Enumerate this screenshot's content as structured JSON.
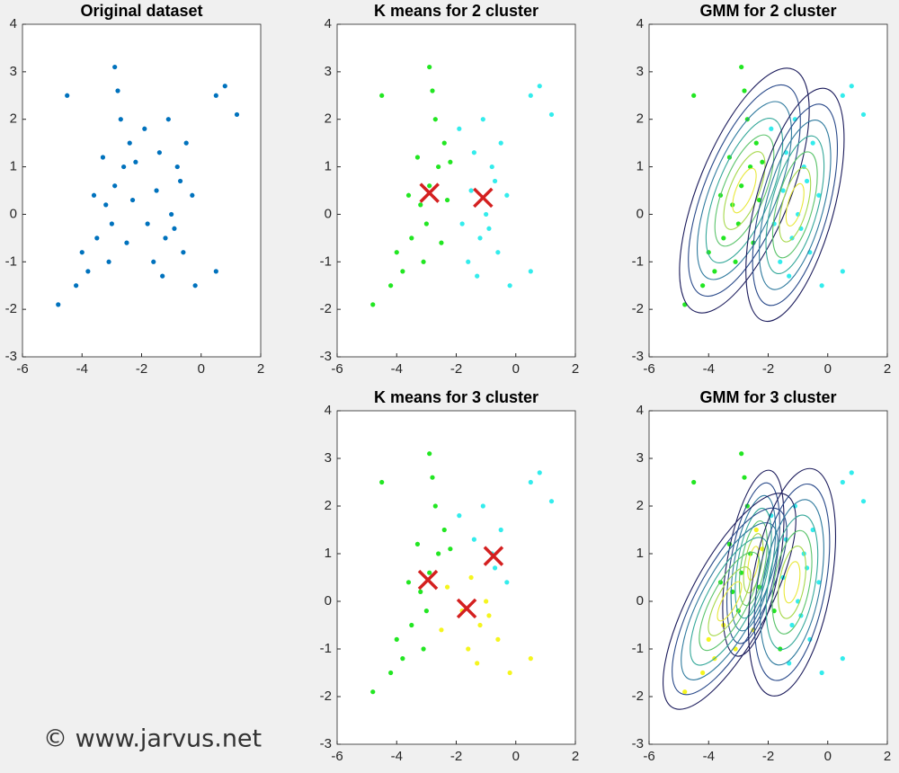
{
  "watermark": "© www.jarvus.net",
  "chart_data": [
    {
      "type": "scatter",
      "title": "Original dataset",
      "xlim": [
        -6,
        2
      ],
      "ylim": [
        -3,
        4
      ],
      "xticks": [
        -6,
        -4,
        -2,
        0,
        2
      ],
      "yticks": [
        -3,
        -2,
        -1,
        0,
        1,
        2,
        3,
        4
      ],
      "series": [
        {
          "color": "#0072bd",
          "x": [
            -3.5,
            -3.2,
            -2.9,
            -2.6,
            -2.4,
            -3.0,
            -3.8,
            -4.2,
            -2.7,
            -2.3,
            -3.3,
            -2.5,
            -4.0,
            -2.8,
            -3.6,
            -4.8,
            -2.2,
            -3.1,
            -2.9,
            -4.5,
            -1.5,
            -1.0,
            -0.8,
            -1.2,
            -0.5,
            -1.8,
            -1.4,
            -0.3,
            -1.6,
            -0.9,
            -1.1,
            -0.6,
            0.5,
            0.8,
            1.2,
            -1.9,
            -1.3,
            -0.2,
            0.5,
            -0.7
          ],
          "y": [
            -0.5,
            0.2,
            0.6,
            1.0,
            1.5,
            -0.2,
            -1.2,
            -1.5,
            2.0,
            0.3,
            1.2,
            -0.6,
            -0.8,
            2.6,
            0.4,
            -1.9,
            1.1,
            -1.0,
            3.1,
            2.5,
            0.5,
            0.0,
            1.0,
            -0.5,
            1.5,
            -0.2,
            1.3,
            0.4,
            -1.0,
            -0.3,
            2.0,
            -0.8,
            2.5,
            2.7,
            2.1,
            1.8,
            -1.3,
            -1.5,
            -1.2,
            0.7
          ]
        }
      ]
    },
    {
      "type": "scatter",
      "title": "K means for 2 cluster",
      "xlim": [
        -6,
        2
      ],
      "ylim": [
        -3,
        4
      ],
      "xticks": [
        -6,
        -4,
        -2,
        0,
        2
      ],
      "yticks": [
        -3,
        -2,
        -1,
        0,
        1,
        2,
        3,
        4
      ],
      "series": [
        {
          "color": "#22e622",
          "x": [
            -3.5,
            -3.2,
            -2.9,
            -2.6,
            -2.4,
            -3.0,
            -3.8,
            -4.2,
            -2.7,
            -2.3,
            -3.3,
            -2.5,
            -4.0,
            -2.8,
            -3.6,
            -4.8,
            -2.2,
            -3.1,
            -2.9,
            -4.5
          ],
          "y": [
            -0.5,
            0.2,
            0.6,
            1.0,
            1.5,
            -0.2,
            -1.2,
            -1.5,
            2.0,
            0.3,
            1.2,
            -0.6,
            -0.8,
            2.6,
            0.4,
            -1.9,
            1.1,
            -1.0,
            3.1,
            2.5
          ]
        },
        {
          "color": "#33ecec",
          "x": [
            -1.5,
            -1.0,
            -0.8,
            -1.2,
            -0.5,
            -1.8,
            -1.4,
            -0.3,
            -1.6,
            -0.9,
            -1.1,
            -0.6,
            0.5,
            0.8,
            1.2,
            -1.9,
            -1.3,
            -0.2,
            0.5,
            -0.7
          ],
          "y": [
            0.5,
            0.0,
            1.0,
            -0.5,
            1.5,
            -0.2,
            1.3,
            0.4,
            -1.0,
            -0.3,
            2.0,
            -0.8,
            2.5,
            2.7,
            2.1,
            1.8,
            -1.3,
            -1.5,
            -1.2,
            0.7
          ]
        }
      ],
      "centroids": {
        "color": "#d42020",
        "x": [
          -2.9,
          -1.1
        ],
        "y": [
          0.45,
          0.35
        ]
      }
    },
    {
      "type": "gmm",
      "title": "GMM for 2 cluster",
      "xlim": [
        -6,
        2
      ],
      "ylim": [
        -3,
        4
      ],
      "xticks": [
        -6,
        -4,
        -2,
        0,
        2
      ],
      "yticks": [
        -3,
        -2,
        -1,
        0,
        1,
        2,
        3,
        4
      ],
      "series": [
        {
          "color": "#22e622",
          "x": [
            -3.5,
            -3.2,
            -2.9,
            -2.6,
            -2.4,
            -3.0,
            -3.8,
            -4.2,
            -2.7,
            -2.3,
            -3.3,
            -2.5,
            -4.0,
            -2.8,
            -3.6,
            -4.8,
            -2.2,
            -3.1,
            -2.9,
            -4.5
          ],
          "y": [
            -0.5,
            0.2,
            0.6,
            1.0,
            1.5,
            -0.2,
            -1.2,
            -1.5,
            2.0,
            0.3,
            1.2,
            -0.6,
            -0.8,
            2.6,
            0.4,
            -1.9,
            1.1,
            -1.0,
            3.1,
            2.5
          ]
        },
        {
          "color": "#33ecec",
          "x": [
            -1.5,
            -1.0,
            -0.8,
            -1.2,
            -0.5,
            -1.8,
            -1.4,
            -0.3,
            -1.6,
            -0.9,
            -1.1,
            -0.6,
            0.5,
            0.8,
            1.2,
            -1.9,
            -1.3,
            -0.2,
            0.5,
            -0.7
          ],
          "y": [
            0.5,
            0.0,
            1.0,
            -0.5,
            1.5,
            -0.2,
            1.3,
            0.4,
            -1.0,
            -0.3,
            2.0,
            -0.8,
            2.5,
            2.7,
            2.1,
            1.8,
            -1.3,
            -1.5,
            -1.2,
            0.7
          ]
        }
      ],
      "components": [
        {
          "x": -2.8,
          "y": 0.5,
          "sx": 0.7,
          "sy": 1.25,
          "angle": 22
        },
        {
          "x": -1.1,
          "y": 0.2,
          "sx": 0.6,
          "sy": 1.15,
          "angle": 15
        }
      ]
    },
    {
      "type": "scatter",
      "title": "K means for 3 cluster",
      "xlim": [
        -6,
        2
      ],
      "ylim": [
        -3,
        4
      ],
      "xticks": [
        -6,
        -4,
        -2,
        0,
        2
      ],
      "yticks": [
        -3,
        -2,
        -1,
        0,
        1,
        2,
        3,
        4
      ],
      "series": [
        {
          "color": "#22e622",
          "x": [
            -3.5,
            -3.2,
            -2.9,
            -2.6,
            -2.4,
            -3.0,
            -3.8,
            -4.2,
            -2.7,
            -3.3,
            -4.0,
            -2.8,
            -3.6,
            -4.8,
            -2.2,
            -3.1,
            -2.9,
            -4.5
          ],
          "y": [
            -0.5,
            0.2,
            0.6,
            1.0,
            1.5,
            -0.2,
            -1.2,
            -1.5,
            2.0,
            1.2,
            -0.8,
            2.6,
            0.4,
            -1.9,
            1.1,
            -1.0,
            3.1,
            2.5
          ]
        },
        {
          "color": "#33ecec",
          "x": [
            -0.8,
            -0.5,
            -1.4,
            -0.3,
            -1.1,
            0.5,
            0.8,
            1.2,
            -1.9,
            -0.7
          ],
          "y": [
            1.0,
            1.5,
            1.3,
            0.4,
            2.0,
            2.5,
            2.7,
            2.1,
            1.8,
            0.7
          ]
        },
        {
          "color": "#f5f51e",
          "x": [
            -2.3,
            -2.5,
            -1.5,
            -1.0,
            -1.2,
            -1.8,
            -1.6,
            -0.9,
            -0.6,
            -1.3,
            -0.2,
            0.5
          ],
          "y": [
            0.3,
            -0.6,
            0.5,
            0.0,
            -0.5,
            -0.2,
            -1.0,
            -0.3,
            -0.8,
            -1.3,
            -1.5,
            -1.2
          ]
        }
      ],
      "centroids": {
        "color": "#d42020",
        "x": [
          -2.95,
          -0.75,
          -1.65
        ],
        "y": [
          0.45,
          0.95,
          -0.15
        ]
      }
    },
    {
      "type": "gmm",
      "title": "GMM for 3 cluster",
      "xlim": [
        -6,
        2
      ],
      "ylim": [
        -3,
        4
      ],
      "xticks": [
        -6,
        -4,
        -2,
        0,
        2
      ],
      "yticks": [
        -3,
        -2,
        -1,
        0,
        1,
        2,
        3,
        4
      ],
      "series": [
        {
          "color": "#f5f51e",
          "x": [
            -3.5,
            -3.8,
            -4.2,
            -4.0,
            -4.8,
            -3.1,
            -2.4,
            -2.5,
            -2.2
          ],
          "y": [
            -0.5,
            -1.2,
            -1.5,
            -0.8,
            -1.9,
            -1.0,
            1.5,
            -0.6,
            1.1
          ]
        },
        {
          "color": "#22e622",
          "x": [
            -3.2,
            -2.9,
            -2.6,
            -3.0,
            -2.7,
            -2.3,
            -3.3,
            -2.8,
            -3.6,
            -2.9,
            -4.5,
            -1.8,
            -1.6
          ],
          "y": [
            0.2,
            0.6,
            1.0,
            -0.2,
            2.0,
            0.3,
            1.2,
            2.6,
            0.4,
            3.1,
            2.5,
            -0.2,
            -1.0
          ]
        },
        {
          "color": "#33ecec",
          "x": [
            -1.5,
            -1.0,
            -0.8,
            -1.2,
            -0.5,
            -1.4,
            -0.3,
            -0.9,
            -1.1,
            -0.6,
            0.5,
            0.8,
            1.2,
            -1.9,
            -1.3,
            -0.2,
            0.5,
            -0.7
          ],
          "y": [
            0.5,
            0.0,
            1.0,
            -0.5,
            1.5,
            1.3,
            0.4,
            -0.3,
            2.0,
            -0.8,
            2.5,
            2.7,
            2.1,
            1.8,
            -1.3,
            -1.5,
            -1.2,
            0.7
          ]
        }
      ],
      "components": [
        {
          "x": -2.5,
          "y": 0.8,
          "sx": 0.4,
          "sy": 0.9,
          "angle": 10
        },
        {
          "x": -3.3,
          "y": 0.0,
          "sx": 0.6,
          "sy": 1.15,
          "angle": 28
        },
        {
          "x": -1.2,
          "y": 0.4,
          "sx": 0.6,
          "sy": 1.1,
          "angle": 10
        }
      ]
    }
  ]
}
